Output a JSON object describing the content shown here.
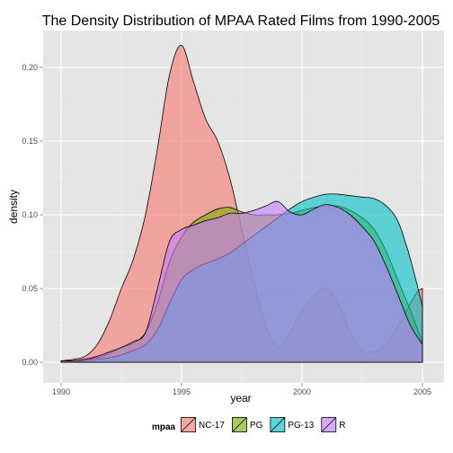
{
  "chart_data": {
    "type": "area",
    "title": "The Density Distribution of MPAA Rated Films from 1990-2005",
    "xlabel": "year",
    "ylabel": "density",
    "xlim": [
      1990,
      2005
    ],
    "ylim": [
      0,
      0.22
    ],
    "x_ticks": [
      1990,
      1995,
      2000,
      2005
    ],
    "y_ticks": [
      0.0,
      0.05,
      0.1,
      0.15,
      0.2
    ],
    "y_tick_labels": [
      "0.00",
      "0.05",
      "0.10",
      "0.15",
      "0.20"
    ],
    "grid": true,
    "legend": {
      "title": "mpaa",
      "position": "bottom"
    },
    "series": [
      {
        "name": "NC-17",
        "color": "#F8766D",
        "x": [
          1990,
          1990.5,
          1991,
          1991.5,
          1992,
          1992.5,
          1993,
          1993.5,
          1994,
          1994.5,
          1995,
          1995.5,
          1996,
          1996.5,
          1997,
          1997.5,
          1998,
          1998.5,
          1999,
          1999.5,
          2000,
          2000.5,
          2001,
          2001.5,
          2002,
          2002.5,
          2003,
          2003.5,
          2004,
          2004.5,
          2004.8,
          2005
        ],
        "y": [
          0.001,
          0.002,
          0.004,
          0.012,
          0.028,
          0.05,
          0.07,
          0.1,
          0.145,
          0.195,
          0.215,
          0.19,
          0.165,
          0.15,
          0.125,
          0.09,
          0.055,
          0.025,
          0.01,
          0.02,
          0.035,
          0.045,
          0.05,
          0.04,
          0.02,
          0.008,
          0.007,
          0.012,
          0.025,
          0.04,
          0.048,
          0.05
        ]
      },
      {
        "name": "PG",
        "color": "#7CAE00",
        "x": [
          1990,
          1990.5,
          1991,
          1991.5,
          1992,
          1992.5,
          1993,
          1993.5,
          1994,
          1994.5,
          1995,
          1995.5,
          1996,
          1996.5,
          1997,
          1997.5,
          1998,
          1998.5,
          1999,
          1999.5,
          2000,
          2000.5,
          2001,
          2001.5,
          2002,
          2002.5,
          2003,
          2003.5,
          2004,
          2004.5,
          2005
        ],
        "y": [
          0.001,
          0.001,
          0.002,
          0.003,
          0.006,
          0.01,
          0.013,
          0.02,
          0.04,
          0.068,
          0.085,
          0.095,
          0.1,
          0.104,
          0.105,
          0.102,
          0.1,
          0.1,
          0.1,
          0.101,
          0.103,
          0.105,
          0.106,
          0.106,
          0.103,
          0.098,
          0.09,
          0.075,
          0.055,
          0.035,
          0.013
        ]
      },
      {
        "name": "PG-13",
        "color": "#00BFC4",
        "x": [
          1990,
          1990.5,
          1991,
          1991.5,
          1992,
          1992.5,
          1993,
          1993.5,
          1994,
          1994.5,
          1995,
          1995.5,
          1996,
          1996.5,
          1997,
          1997.5,
          1998,
          1998.5,
          1999,
          1999.5,
          2000,
          2000.5,
          2001,
          2001.5,
          2002,
          2002.5,
          2003,
          2003.5,
          2004,
          2004.5,
          2005
        ],
        "y": [
          0.0,
          0.0,
          0.001,
          0.002,
          0.003,
          0.005,
          0.008,
          0.012,
          0.022,
          0.04,
          0.056,
          0.063,
          0.067,
          0.07,
          0.074,
          0.08,
          0.086,
          0.092,
          0.098,
          0.104,
          0.109,
          0.112,
          0.114,
          0.114,
          0.113,
          0.112,
          0.111,
          0.106,
          0.095,
          0.07,
          0.038
        ]
      },
      {
        "name": "R",
        "color": "#C77CFF",
        "x": [
          1990,
          1990.5,
          1991,
          1991.5,
          1992,
          1992.5,
          1993,
          1993.5,
          1994,
          1994.5,
          1995,
          1995.5,
          1996,
          1996.5,
          1997,
          1997.5,
          1998,
          1998.5,
          1999,
          1999.5,
          2000,
          2000.5,
          2001,
          2001.5,
          2002,
          2002.5,
          2003,
          2003.5,
          2004,
          2004.5,
          2005
        ],
        "y": [
          0.001,
          0.001,
          0.002,
          0.004,
          0.007,
          0.01,
          0.014,
          0.02,
          0.05,
          0.082,
          0.09,
          0.093,
          0.096,
          0.098,
          0.101,
          0.101,
          0.103,
          0.106,
          0.109,
          0.102,
          0.1,
          0.104,
          0.107,
          0.105,
          0.1,
          0.092,
          0.082,
          0.065,
          0.045,
          0.025,
          0.012
        ]
      }
    ]
  }
}
